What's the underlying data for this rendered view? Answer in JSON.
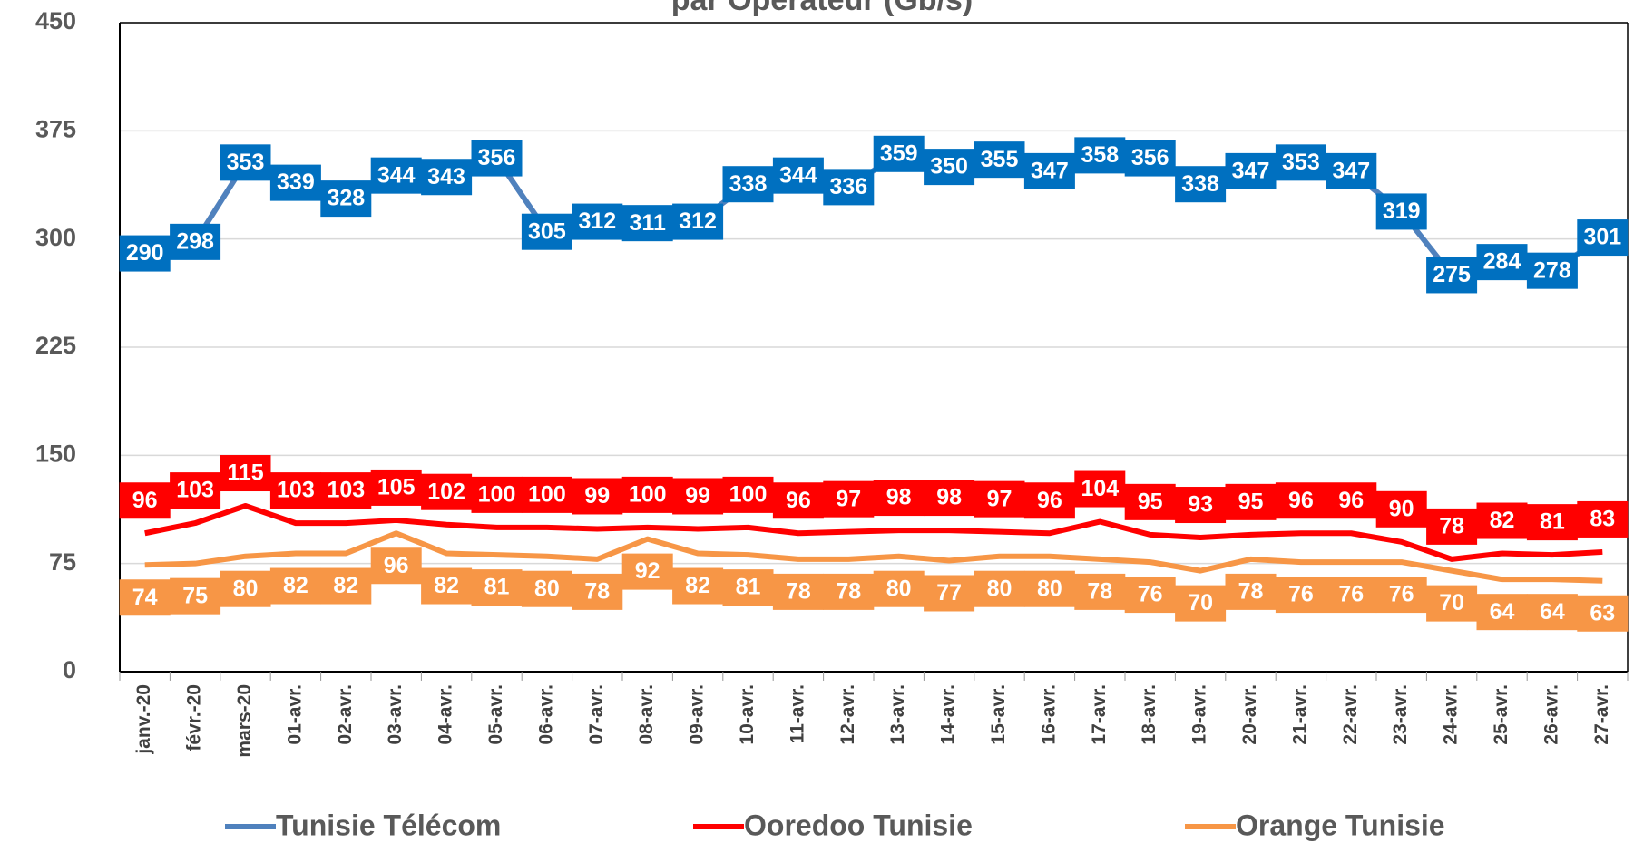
{
  "chart_data": {
    "type": "line",
    "title": "par Opérateur (Gb/s)",
    "categories": [
      "janv.-20",
      "févr.-20",
      "mars-20",
      "01-avr.",
      "02-avr.",
      "03-avr.",
      "04-avr.",
      "05-avr.",
      "06-avr.",
      "07-avr.",
      "08-avr.",
      "09-avr.",
      "10-avr.",
      "11-avr.",
      "12-avr.",
      "13-avr.",
      "14-avr.",
      "15-avr.",
      "16-avr.",
      "17-avr.",
      "18-avr.",
      "19-avr.",
      "20-avr.",
      "21-avr.",
      "22-avr.",
      "23-avr.",
      "24-avr.",
      "25-avr.",
      "26-avr.",
      "27-avr."
    ],
    "series": [
      {
        "name": "Tunisie Télécom",
        "color": "#4f81bd",
        "label_color": "#0070c0",
        "values": [
          290,
          298,
          353,
          339,
          328,
          344,
          343,
          356,
          305,
          312,
          311,
          312,
          338,
          344,
          336,
          359,
          350,
          355,
          347,
          358,
          356,
          338,
          347,
          353,
          347,
          319,
          275,
          284,
          278,
          301
        ]
      },
      {
        "name": "Ooredoo Tunisie",
        "color": "#ff0000",
        "label_color": "#ff0000",
        "values": [
          96,
          103,
          115,
          103,
          103,
          105,
          102,
          100,
          100,
          99,
          100,
          99,
          100,
          96,
          97,
          98,
          98,
          97,
          96,
          104,
          95,
          93,
          95,
          96,
          96,
          90,
          78,
          82,
          81,
          83
        ]
      },
      {
        "name": "Orange Tunisie",
        "color": "#f79646",
        "label_color": "#f79646",
        "values": [
          74,
          75,
          80,
          82,
          82,
          96,
          82,
          81,
          80,
          78,
          92,
          82,
          81,
          78,
          78,
          80,
          77,
          80,
          80,
          78,
          76,
          70,
          78,
          76,
          76,
          76,
          70,
          64,
          64,
          63
        ]
      }
    ],
    "ylim": [
      0,
      450
    ],
    "yticks": [
      0,
      75,
      150,
      225,
      300,
      375,
      450
    ],
    "grid": true,
    "legend": "bottom"
  }
}
